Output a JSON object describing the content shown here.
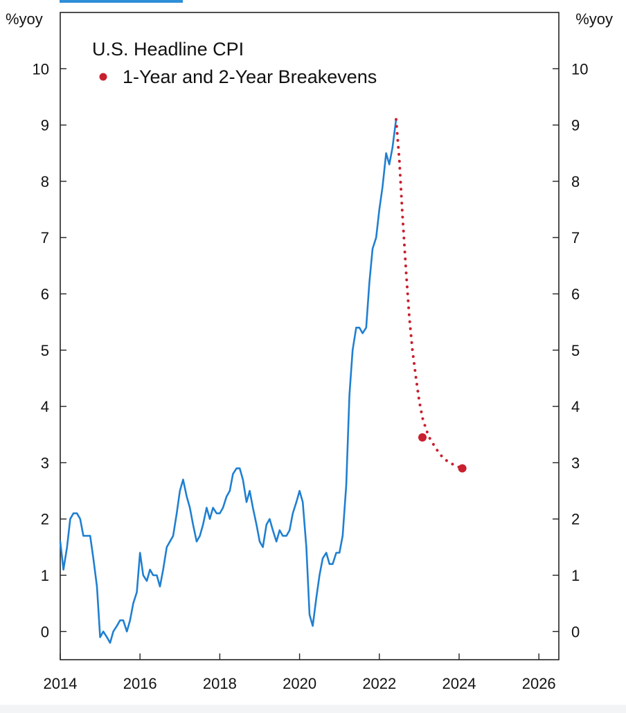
{
  "chart_data": {
    "type": "line",
    "title": "",
    "ylabel_left": "%yoy",
    "ylabel_right": "%yoy",
    "ylim": [
      -0.5,
      11
    ],
    "xlim": [
      2014,
      2026.5
    ],
    "yticks": [
      0,
      1,
      2,
      3,
      4,
      5,
      6,
      7,
      8,
      9,
      10
    ],
    "xticks": [
      2014,
      2016,
      2018,
      2020,
      2022,
      2024,
      2026
    ],
    "grid": false,
    "legend_position": "top-left",
    "series": [
      {
        "name": "U.S. Headline CPI",
        "style": "solid",
        "color": "#1f7fd1",
        "points": [
          [
            2014.0,
            1.6
          ],
          [
            2014.08,
            1.1
          ],
          [
            2014.17,
            1.5
          ],
          [
            2014.25,
            2.0
          ],
          [
            2014.33,
            2.1
          ],
          [
            2014.42,
            2.1
          ],
          [
            2014.5,
            2.0
          ],
          [
            2014.58,
            1.7
          ],
          [
            2014.67,
            1.7
          ],
          [
            2014.75,
            1.7
          ],
          [
            2014.83,
            1.3
          ],
          [
            2014.92,
            0.8
          ],
          [
            2015.0,
            -0.1
          ],
          [
            2015.08,
            0.0
          ],
          [
            2015.17,
            -0.1
          ],
          [
            2015.25,
            -0.2
          ],
          [
            2015.33,
            0.0
          ],
          [
            2015.42,
            0.1
          ],
          [
            2015.5,
            0.2
          ],
          [
            2015.58,
            0.2
          ],
          [
            2015.67,
            0.0
          ],
          [
            2015.75,
            0.2
          ],
          [
            2015.83,
            0.5
          ],
          [
            2015.92,
            0.7
          ],
          [
            2016.0,
            1.4
          ],
          [
            2016.08,
            1.0
          ],
          [
            2016.17,
            0.9
          ],
          [
            2016.25,
            1.1
          ],
          [
            2016.33,
            1.0
          ],
          [
            2016.42,
            1.0
          ],
          [
            2016.5,
            0.8
          ],
          [
            2016.58,
            1.1
          ],
          [
            2016.67,
            1.5
          ],
          [
            2016.75,
            1.6
          ],
          [
            2016.83,
            1.7
          ],
          [
            2016.92,
            2.1
          ],
          [
            2017.0,
            2.5
          ],
          [
            2017.08,
            2.7
          ],
          [
            2017.17,
            2.4
          ],
          [
            2017.25,
            2.2
          ],
          [
            2017.33,
            1.9
          ],
          [
            2017.42,
            1.6
          ],
          [
            2017.5,
            1.7
          ],
          [
            2017.58,
            1.9
          ],
          [
            2017.67,
            2.2
          ],
          [
            2017.75,
            2.0
          ],
          [
            2017.83,
            2.2
          ],
          [
            2017.92,
            2.1
          ],
          [
            2018.0,
            2.1
          ],
          [
            2018.08,
            2.2
          ],
          [
            2018.17,
            2.4
          ],
          [
            2018.25,
            2.5
          ],
          [
            2018.33,
            2.8
          ],
          [
            2018.42,
            2.9
          ],
          [
            2018.5,
            2.9
          ],
          [
            2018.58,
            2.7
          ],
          [
            2018.67,
            2.3
          ],
          [
            2018.75,
            2.5
          ],
          [
            2018.83,
            2.2
          ],
          [
            2018.92,
            1.9
          ],
          [
            2019.0,
            1.6
          ],
          [
            2019.08,
            1.5
          ],
          [
            2019.17,
            1.9
          ],
          [
            2019.25,
            2.0
          ],
          [
            2019.33,
            1.8
          ],
          [
            2019.42,
            1.6
          ],
          [
            2019.5,
            1.8
          ],
          [
            2019.58,
            1.7
          ],
          [
            2019.67,
            1.7
          ],
          [
            2019.75,
            1.8
          ],
          [
            2019.83,
            2.1
          ],
          [
            2019.92,
            2.3
          ],
          [
            2020.0,
            2.5
          ],
          [
            2020.08,
            2.3
          ],
          [
            2020.17,
            1.5
          ],
          [
            2020.25,
            0.3
          ],
          [
            2020.33,
            0.1
          ],
          [
            2020.42,
            0.6
          ],
          [
            2020.5,
            1.0
          ],
          [
            2020.58,
            1.3
          ],
          [
            2020.67,
            1.4
          ],
          [
            2020.75,
            1.2
          ],
          [
            2020.83,
            1.2
          ],
          [
            2020.92,
            1.4
          ],
          [
            2021.0,
            1.4
          ],
          [
            2021.08,
            1.7
          ],
          [
            2021.17,
            2.6
          ],
          [
            2021.25,
            4.2
          ],
          [
            2021.33,
            5.0
          ],
          [
            2021.42,
            5.4
          ],
          [
            2021.5,
            5.4
          ],
          [
            2021.58,
            5.3
          ],
          [
            2021.67,
            5.4
          ],
          [
            2021.75,
            6.2
          ],
          [
            2021.83,
            6.8
          ],
          [
            2021.92,
            7.0
          ],
          [
            2022.0,
            7.5
          ],
          [
            2022.08,
            7.9
          ],
          [
            2022.17,
            8.5
          ],
          [
            2022.25,
            8.3
          ],
          [
            2022.33,
            8.6
          ],
          [
            2022.42,
            9.1
          ]
        ]
      },
      {
        "name": "1-Year and 2-Year Breakevens",
        "style": "dotted",
        "color": "#c8202e",
        "points": [
          [
            2022.42,
            9.1
          ],
          [
            2022.5,
            8.4
          ],
          [
            2022.58,
            7.4
          ],
          [
            2022.67,
            6.4
          ],
          [
            2022.75,
            5.6
          ],
          [
            2022.83,
            5.0
          ],
          [
            2022.92,
            4.5
          ],
          [
            2023.0,
            4.1
          ],
          [
            2023.08,
            3.8
          ],
          [
            2023.17,
            3.6
          ],
          [
            2023.25,
            3.45
          ],
          [
            2023.42,
            3.25
          ],
          [
            2023.58,
            3.1
          ],
          [
            2023.75,
            3.0
          ],
          [
            2023.92,
            2.95
          ],
          [
            2024.0,
            2.92
          ]
        ],
        "markers": [
          [
            2023.08,
            3.45
          ],
          [
            2024.08,
            2.9
          ]
        ]
      }
    ]
  }
}
